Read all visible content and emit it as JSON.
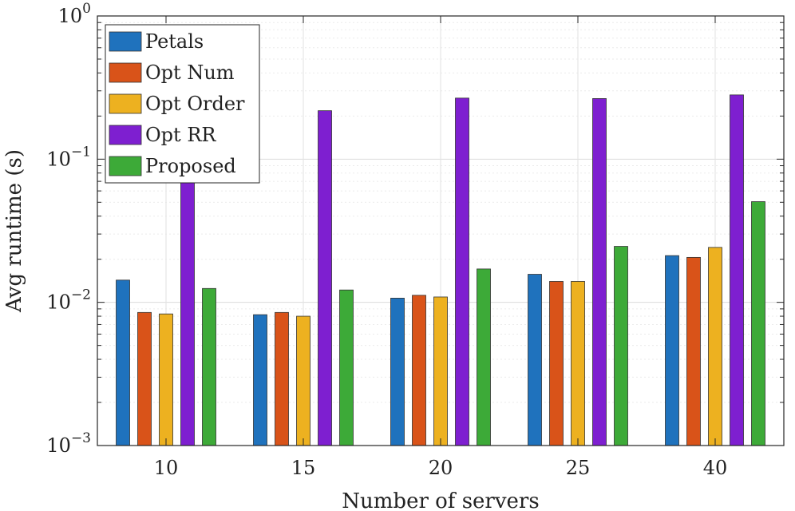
{
  "chart_data": {
    "type": "bar",
    "title": "",
    "xlabel": "Number of servers",
    "ylabel": "Avg runtime (s)",
    "yscale": "log",
    "ylim": [
      0.001,
      1
    ],
    "grid": true,
    "legend_position": "top-left",
    "categories": [
      "10",
      "15",
      "20",
      "25",
      "40"
    ],
    "y_ticks": [
      {
        "value": 0.001,
        "base": "10",
        "exp": "−3"
      },
      {
        "value": 0.01,
        "base": "10",
        "exp": "−2"
      },
      {
        "value": 0.1,
        "base": "10",
        "exp": "−1"
      },
      {
        "value": 1,
        "base": "10",
        "exp": "0"
      }
    ],
    "series": [
      {
        "name": "Petals",
        "color": "#1f72bd",
        "values": [
          0.0143,
          0.0082,
          0.0107,
          0.0157,
          0.0212
        ]
      },
      {
        "name": "Opt Num",
        "color": "#d95319",
        "values": [
          0.0085,
          0.0085,
          0.0112,
          0.014,
          0.0206
        ]
      },
      {
        "name": "Opt Order",
        "color": "#edb120",
        "values": [
          0.0083,
          0.008,
          0.0109,
          0.014,
          0.0242
        ]
      },
      {
        "name": "Opt RR",
        "color": "#7e1fd0",
        "values": [
          0.07,
          0.218,
          0.267,
          0.265,
          0.281
        ]
      },
      {
        "name": "Proposed",
        "color": "#3daa38",
        "values": [
          0.0125,
          0.0122,
          0.0171,
          0.0246,
          0.0505
        ]
      }
    ]
  }
}
